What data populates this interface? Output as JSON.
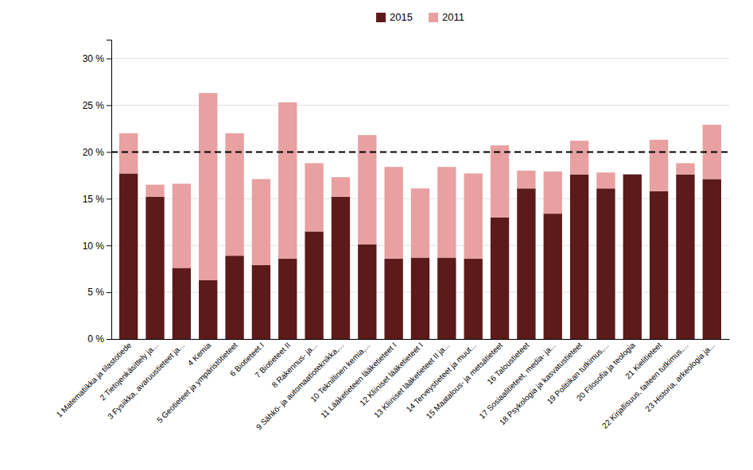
{
  "chart_data": {
    "type": "bar",
    "stacked": true,
    "grid": true,
    "legend": "top",
    "categories": [
      "1 Matematiikka ja tilastotiede",
      "2 Tietojenkäsittely ja...",
      "3 Fysiikka, avaruustieteet ja...",
      "4 Kemia",
      "5 Geotieteet ja ympäristötieteet",
      "6 Biotieteet I",
      "7 Biotieteet II",
      "8 Rakennus- ja...",
      "9 Sähkö- ja automaatioteknikka,...",
      "10 Teknillinen kemia,...",
      "11 Lääketieteen lääketieteet I",
      "12 Kliiniset lääketieteet I",
      "13 Kliiniset lääketieteet II ja...",
      "14 Terveystieteet ja muut...",
      "15 Maatalous- ja metsätieteet",
      "16 Taloustieteet",
      "17 Sosiaalitieteet, media- ja...",
      "18 Psykologia ja kasvatustieteet",
      "19 Politiikan tutkimus,...",
      "20 Filosofia ja teologia",
      "21 Kielitieteet",
      "22 Kirjallisuus, taiteen tutkimus,...",
      "23 Historia, arkeologia ja..."
    ],
    "series": [
      {
        "name": "2015",
        "color": "#5c1a1a",
        "values": [
          17.7,
          15.2,
          7.6,
          6.3,
          8.9,
          7.9,
          8.6,
          11.5,
          15.2,
          10.1,
          8.6,
          8.7,
          8.7,
          8.6,
          13.0,
          16.1,
          13.4,
          17.6,
          16.1,
          17.6,
          15.8,
          17.6,
          17.1
        ]
      },
      {
        "name": "2011",
        "color": "#e8a0a0",
        "values": [
          4.3,
          1.3,
          9.0,
          20.0,
          13.1,
          9.2,
          16.7,
          7.3,
          2.1,
          11.7,
          9.8,
          7.4,
          9.7,
          9.1,
          7.7,
          1.9,
          4.5,
          3.6,
          1.7,
          0,
          5.5,
          1.2,
          5.8
        ]
      }
    ],
    "reference_line": {
      "value": 20.0,
      "color": "#000000",
      "line_style": "dashed"
    },
    "ylim": [
      0,
      32
    ],
    "yticks": [
      {
        "value": 0,
        "label": "0 %"
      },
      {
        "value": 5,
        "label": "5 %"
      },
      {
        "value": 10,
        "label": "10 %"
      },
      {
        "value": 15,
        "label": "15 %"
      },
      {
        "value": 20,
        "label": "20 %"
      },
      {
        "value": 25,
        "label": "25 %"
      },
      {
        "value": 30,
        "label": "30 %"
      }
    ]
  }
}
